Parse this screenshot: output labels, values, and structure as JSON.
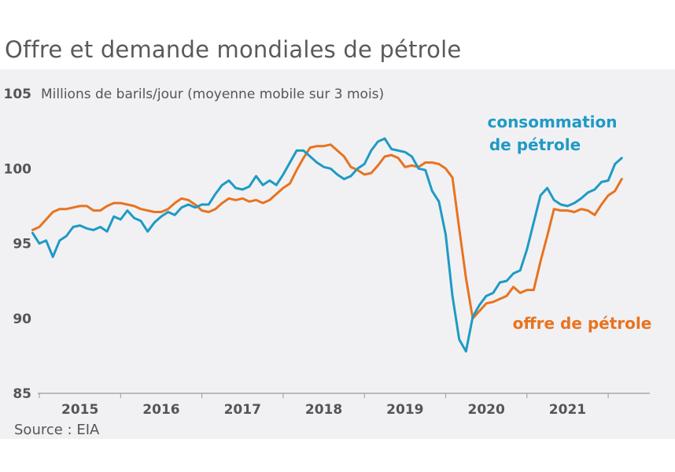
{
  "title": "Offre et demande mondiales de pétrole",
  "source": "Source : EIA",
  "chart_data": {
    "type": "line",
    "title": "Offre et demande mondiales de pétrole",
    "ylabel": "Millions de barils/jour (moyenne mobile sur 3 mois)",
    "xlabel": "",
    "ylim": [
      85,
      105
    ],
    "yticks": [
      "85",
      "90",
      "95",
      "100",
      "105"
    ],
    "xticks": [
      "2015",
      "2016",
      "2017",
      "2018",
      "2019",
      "2020",
      "2021"
    ],
    "grid": false,
    "colors": {
      "consumption": "#1f9ac4",
      "supply": "#e8731f"
    },
    "series": [
      {
        "name": "consommation de pétrole",
        "label_line1": "consommation",
        "label_line2": "de pétrole",
        "x": [
          "2014-12",
          "2015-01",
          "2015-02",
          "2015-03",
          "2015-04",
          "2015-05",
          "2015-06",
          "2015-07",
          "2015-08",
          "2015-09",
          "2015-10",
          "2015-11",
          "2015-12",
          "2016-01",
          "2016-02",
          "2016-03",
          "2016-04",
          "2016-05",
          "2016-06",
          "2016-07",
          "2016-08",
          "2016-09",
          "2016-10",
          "2016-11",
          "2016-12",
          "2017-01",
          "2017-02",
          "2017-03",
          "2017-04",
          "2017-05",
          "2017-06",
          "2017-07",
          "2017-08",
          "2017-09",
          "2017-10",
          "2017-11",
          "2017-12",
          "2018-01",
          "2018-02",
          "2018-03",
          "2018-04",
          "2018-05",
          "2018-06",
          "2018-07",
          "2018-08",
          "2018-09",
          "2018-10",
          "2018-11",
          "2018-12",
          "2019-01",
          "2019-02",
          "2019-03",
          "2019-04",
          "2019-05",
          "2019-06",
          "2019-07",
          "2019-08",
          "2019-09",
          "2019-10",
          "2019-11",
          "2019-12",
          "2020-01",
          "2020-02",
          "2020-03",
          "2020-04",
          "2020-05",
          "2020-06",
          "2020-07",
          "2020-08",
          "2020-09",
          "2020-10",
          "2020-11",
          "2020-12",
          "2021-01",
          "2021-02",
          "2021-03",
          "2021-04",
          "2021-05",
          "2021-06",
          "2021-07",
          "2021-08",
          "2021-09",
          "2021-10",
          "2021-11",
          "2021-12",
          "2022-01",
          "2022-02",
          "2022-03"
        ],
        "values": [
          95.7,
          95.0,
          95.2,
          94.1,
          95.2,
          95.5,
          96.1,
          96.2,
          96.0,
          95.9,
          96.1,
          95.8,
          96.8,
          96.6,
          97.2,
          96.7,
          96.5,
          95.8,
          96.4,
          96.8,
          97.1,
          96.9,
          97.4,
          97.6,
          97.4,
          97.6,
          97.6,
          98.3,
          98.9,
          99.2,
          98.7,
          98.6,
          98.8,
          99.5,
          98.9,
          99.2,
          98.9,
          99.6,
          100.4,
          101.2,
          101.2,
          100.8,
          100.4,
          100.1,
          100.0,
          99.6,
          99.3,
          99.5,
          100.0,
          100.3,
          101.2,
          101.8,
          102.0,
          101.3,
          101.2,
          101.1,
          100.8,
          100.0,
          99.9,
          98.5,
          97.8,
          95.6,
          91.5,
          88.6,
          87.8,
          90.1,
          90.9,
          91.5,
          91.7,
          92.4,
          92.5,
          93.0,
          93.2,
          94.6,
          96.4,
          98.2,
          98.7,
          97.9,
          97.6,
          97.5,
          97.7,
          98.0,
          98.4,
          98.6,
          99.1,
          99.2,
          100.3,
          100.7
        ]
      },
      {
        "name": "offre de pétrole",
        "x": [
          "2014-12",
          "2015-01",
          "2015-02",
          "2015-03",
          "2015-04",
          "2015-05",
          "2015-06",
          "2015-07",
          "2015-08",
          "2015-09",
          "2015-10",
          "2015-11",
          "2015-12",
          "2016-01",
          "2016-02",
          "2016-03",
          "2016-04",
          "2016-05",
          "2016-06",
          "2016-07",
          "2016-08",
          "2016-09",
          "2016-10",
          "2016-11",
          "2016-12",
          "2017-01",
          "2017-02",
          "2017-03",
          "2017-04",
          "2017-05",
          "2017-06",
          "2017-07",
          "2017-08",
          "2017-09",
          "2017-10",
          "2017-11",
          "2017-12",
          "2018-01",
          "2018-02",
          "2018-03",
          "2018-04",
          "2018-05",
          "2018-06",
          "2018-07",
          "2018-08",
          "2018-09",
          "2018-10",
          "2018-11",
          "2018-12",
          "2019-01",
          "2019-02",
          "2019-03",
          "2019-04",
          "2019-05",
          "2019-06",
          "2019-07",
          "2019-08",
          "2019-09",
          "2019-10",
          "2019-11",
          "2019-12",
          "2020-01",
          "2020-02",
          "2020-03",
          "2020-04",
          "2020-05",
          "2020-06",
          "2020-07",
          "2020-08",
          "2020-09",
          "2020-10",
          "2020-11",
          "2020-12",
          "2021-01",
          "2021-02",
          "2021-03",
          "2021-04",
          "2021-05",
          "2021-06",
          "2021-07",
          "2021-08",
          "2021-09",
          "2021-10",
          "2021-11",
          "2021-12",
          "2022-01",
          "2022-02",
          "2022-03"
        ],
        "values": [
          95.9,
          96.1,
          96.6,
          97.1,
          97.3,
          97.3,
          97.4,
          97.5,
          97.5,
          97.2,
          97.2,
          97.5,
          97.7,
          97.7,
          97.6,
          97.5,
          97.3,
          97.2,
          97.1,
          97.1,
          97.3,
          97.7,
          98.0,
          97.9,
          97.6,
          97.2,
          97.1,
          97.3,
          97.7,
          98.0,
          97.9,
          98.0,
          97.8,
          97.9,
          97.7,
          97.9,
          98.3,
          98.7,
          99.0,
          99.9,
          100.7,
          101.4,
          101.5,
          101.5,
          101.6,
          101.2,
          100.8,
          100.1,
          99.9,
          99.6,
          99.7,
          100.2,
          100.8,
          100.9,
          100.7,
          100.1,
          100.2,
          100.1,
          100.4,
          100.4,
          100.3,
          100.0,
          99.4,
          96.0,
          92.7,
          90.0,
          90.5,
          91.0,
          91.1,
          91.3,
          91.5,
          92.1,
          91.7,
          91.9,
          91.9,
          93.8,
          95.5,
          97.3,
          97.2,
          97.2,
          97.1,
          97.3,
          97.2,
          96.9,
          97.6,
          98.2,
          98.5,
          99.3
        ]
      }
    ]
  }
}
